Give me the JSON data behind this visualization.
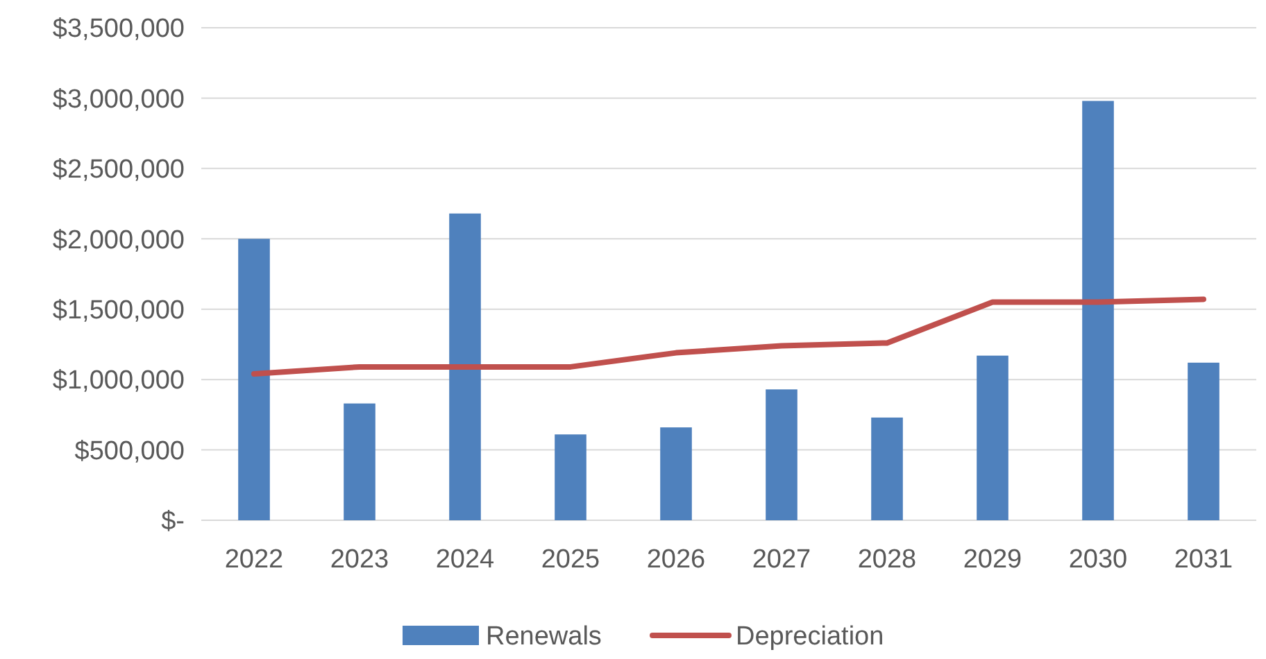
{
  "chart_data": {
    "type": "bar",
    "categories": [
      "2022",
      "2023",
      "2024",
      "2025",
      "2026",
      "2027",
      "2028",
      "2029",
      "2030",
      "2031"
    ],
    "series": [
      {
        "name": "Renewals",
        "color": "#4f81bd",
        "values": [
          2000000,
          830000,
          2180000,
          610000,
          660000,
          930000,
          730000,
          1170000,
          2980000,
          1120000
        ]
      },
      {
        "name": "Depreciation",
        "type": "line",
        "color": "#c0504d",
        "values": [
          1040000,
          1090000,
          1090000,
          1090000,
          1190000,
          1240000,
          1260000,
          1550000,
          1550000,
          1570000
        ]
      }
    ],
    "ylim": [
      0,
      3500000
    ],
    "yticks": [
      {
        "value": 0,
        "label": "$-"
      },
      {
        "value": 500000,
        "label": "$500,000"
      },
      {
        "value": 1000000,
        "label": "$1,000,000"
      },
      {
        "value": 1500000,
        "label": "$1,500,000"
      },
      {
        "value": 2000000,
        "label": "$2,000,000"
      },
      {
        "value": 2500000,
        "label": "$2,500,000"
      },
      {
        "value": 3000000,
        "label": "$3,000,000"
      },
      {
        "value": 3500000,
        "label": "$3,500,000"
      }
    ],
    "grid": "y",
    "legend": "bottom",
    "line_style": "solid"
  }
}
